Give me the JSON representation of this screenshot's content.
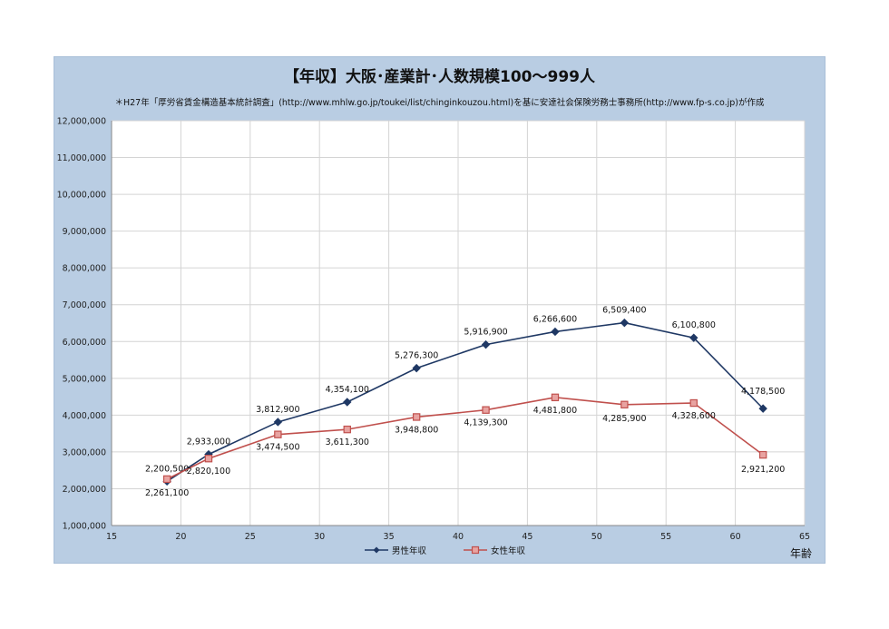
{
  "chart_data": {
    "type": "line",
    "title": "【年収】大阪･産業計･人数規模100～999人",
    "subtitle": "＊H27年「厚労省賃金構造基本統計調査」(http://www.mhlw.go.jp/toukei/list/chinginkouzou.html)を基に安達社会保険労務士事務所(http://www.fp-s.co.jp)が作成",
    "xlabel": "年齢",
    "ylabel": "",
    "xlim": [
      15,
      65
    ],
    "ylim": [
      1000000,
      12000000
    ],
    "x_ticks": [
      15,
      20,
      25,
      30,
      35,
      40,
      45,
      50,
      55,
      60,
      65
    ],
    "x_tick_labels": [
      "15",
      "20",
      "25",
      "30",
      "35",
      "40",
      "45",
      "50",
      "55",
      "60",
      "65"
    ],
    "y_ticks": [
      1000000,
      2000000,
      3000000,
      4000000,
      5000000,
      6000000,
      7000000,
      8000000,
      9000000,
      10000000,
      11000000,
      12000000
    ],
    "y_tick_labels": [
      "1,000,000",
      "2,000,000",
      "3,000,000",
      "4,000,000",
      "5,000,000",
      "6,000,000",
      "7,000,000",
      "8,000,000",
      "9,000,000",
      "10,000,000",
      "11,000,000",
      "12,000,000"
    ],
    "grid": true,
    "legend_position": "bottom",
    "x": [
      19,
      22,
      27,
      32,
      37,
      42,
      47,
      52,
      57,
      62
    ],
    "series": [
      {
        "name": "男性年収",
        "color": "#1f3864",
        "marker": "diamond",
        "values": [
          2200500,
          2933000,
          3812900,
          4354100,
          5276300,
          5916900,
          6266600,
          6509400,
          6100800,
          4178500
        ],
        "labels": [
          "2,200,500",
          "2,933,000",
          "3,812,900",
          "4,354,100",
          "5,276,300",
          "5,916,900",
          "6,266,600",
          "6,509,400",
          "6,100,800",
          "4,178,500"
        ]
      },
      {
        "name": "女性年収",
        "color": "#c0504d",
        "marker": "square",
        "values": [
          2261100,
          2820100,
          3474500,
          3611300,
          3948800,
          4139300,
          4481800,
          4285900,
          4328600,
          2921200
        ],
        "labels": [
          "2,261,100",
          "2,820,100",
          "3,474,500",
          "3,611,300",
          "3,948,800",
          "4,139,300",
          "4,481,800",
          "4,285,900",
          "4,328,600",
          "2,921,200"
        ]
      }
    ]
  }
}
